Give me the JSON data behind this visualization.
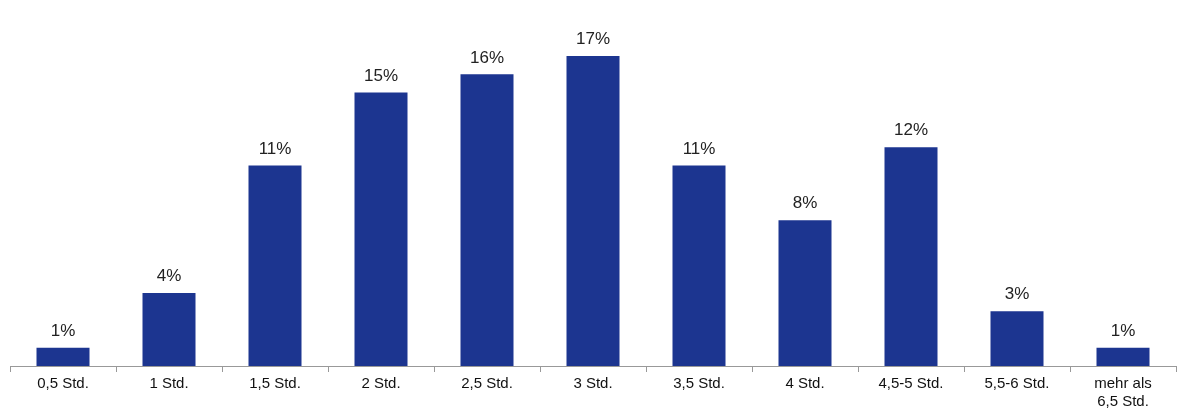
{
  "chart_data": {
    "type": "bar",
    "categories": [
      "0,5 Std.",
      "1 Std.",
      "1,5 Std.",
      "2 Std.",
      "2,5 Std.",
      "3 Std.",
      "3,5 Std.",
      "4 Std.",
      "4,5-5 Std.",
      "5,5-6 Std.",
      "mehr als 6,5 Std."
    ],
    "values": [
      1,
      4,
      11,
      15,
      16,
      17,
      11,
      8,
      12,
      3,
      1
    ],
    "value_labels": [
      "1%",
      "4%",
      "11%",
      "15%",
      "16%",
      "17%",
      "11%",
      "8%",
      "12%",
      "3%",
      "1%"
    ],
    "color": "#1c3590",
    "grid": false,
    "legend": false
  }
}
